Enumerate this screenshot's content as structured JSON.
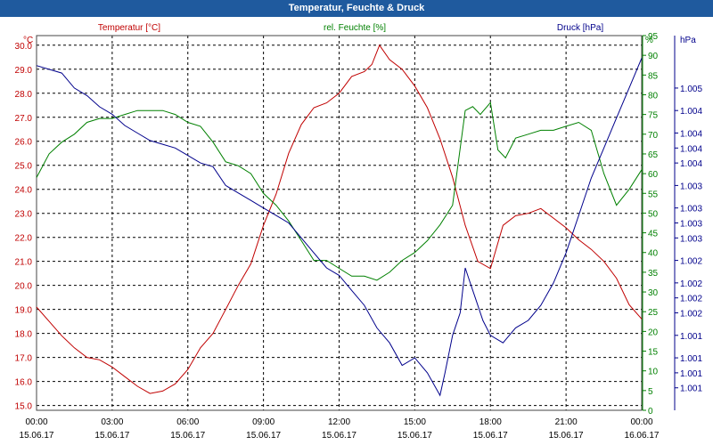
{
  "window": {
    "title": "Temperatur, Feuchte & Druck"
  },
  "chart_data": {
    "type": "line",
    "title": "Temperatur, Feuchte & Druck",
    "x_tick_times": [
      "00:00",
      "03:00",
      "06:00",
      "09:00",
      "12:00",
      "15:00",
      "18:00",
      "21:00",
      "00:00"
    ],
    "x_tick_dates": [
      "15.06.17",
      "15.06.17",
      "15.06.17",
      "15.06.17",
      "15.06.17",
      "15.06.17",
      "15.06.17",
      "15.06.17",
      "16.06.17"
    ],
    "x_hours": [
      0,
      3,
      6,
      9,
      12,
      15,
      18,
      21,
      24
    ],
    "xlim": [
      0,
      24
    ],
    "grid": true,
    "axes": {
      "temperature": {
        "unit_label": "°C",
        "ylim": [
          14.8,
          30.4
        ],
        "ticks": [
          "15.0",
          "16.0",
          "17.0",
          "18.0",
          "19.0",
          "20.0",
          "21.0",
          "22.0",
          "23.0",
          "24.0",
          "25.0",
          "26.0",
          "27.0",
          "28.0",
          "29.0",
          "30.0"
        ],
        "tick_values": [
          15,
          16,
          17,
          18,
          19,
          20,
          21,
          22,
          23,
          24,
          25,
          26,
          27,
          28,
          29,
          30
        ]
      },
      "humidity": {
        "unit_label": "%",
        "ylim": [
          0,
          95
        ],
        "ticks": [
          "0",
          "5",
          "10",
          "15",
          "20",
          "25",
          "30",
          "35",
          "40",
          "45",
          "50",
          "55",
          "60",
          "65",
          "70",
          "75",
          "80",
          "85",
          "90",
          "95"
        ],
        "tick_values": [
          0,
          5,
          10,
          15,
          20,
          25,
          30,
          35,
          40,
          45,
          50,
          55,
          60,
          65,
          70,
          75,
          80,
          85,
          90,
          95
        ]
      },
      "pressure": {
        "unit_label": "hPa",
        "ylim": [
          1000.5,
          1005.5
        ],
        "ticks": [
          "1.001",
          "1.001",
          "1.001",
          "1.001",
          "1.002",
          "1.002",
          "1.002",
          "1.002",
          "1.003",
          "1.003",
          "1.003",
          "1.003",
          "1.004",
          "1.004",
          "1.004",
          "1.004",
          "1.005"
        ],
        "tick_values": [
          1000.8,
          1001.0,
          1001.2,
          1001.5,
          1001.8,
          1002.0,
          1002.2,
          1002.5,
          1002.8,
          1003.0,
          1003.2,
          1003.5,
          1003.8,
          1004.0,
          1004.2,
          1004.5,
          1004.8
        ]
      }
    },
    "series": [
      {
        "name": "Temperatur [°C]",
        "axis": "temperature",
        "color": "#c00000",
        "x": [
          0,
          0.5,
          1,
          1.5,
          2,
          2.5,
          3,
          3.5,
          4,
          4.5,
          5,
          5.5,
          6,
          6.5,
          7,
          7.5,
          8,
          8.5,
          9,
          9.5,
          10,
          10.5,
          11,
          11.5,
          12,
          12.5,
          13,
          13.3,
          13.6,
          14,
          14.5,
          15,
          15.5,
          16,
          16.5,
          17,
          17.5,
          18,
          18.5,
          19,
          19.5,
          20,
          20.5,
          21,
          21.5,
          22,
          22.5,
          23,
          23.5,
          24
        ],
        "values": [
          19.1,
          18.5,
          17.9,
          17.4,
          17.0,
          16.9,
          16.6,
          16.2,
          15.8,
          15.5,
          15.6,
          15.9,
          16.5,
          17.4,
          18.0,
          19.0,
          20.0,
          20.9,
          22.5,
          23.8,
          25.5,
          26.7,
          27.4,
          27.6,
          28.0,
          28.7,
          28.9,
          29.2,
          30.0,
          29.4,
          29.0,
          28.3,
          27.4,
          26.1,
          24.5,
          22.5,
          21.0,
          20.7,
          22.5,
          22.9,
          23.0,
          23.2,
          22.8,
          22.4,
          21.9,
          21.5,
          21.0,
          20.3,
          19.2,
          18.6
        ]
      },
      {
        "name": "rel. Feuchte [%]",
        "axis": "humidity",
        "color": "#008000",
        "x": [
          0,
          0.5,
          1,
          1.5,
          2,
          2.5,
          3,
          3.5,
          4,
          4.5,
          5,
          5.5,
          6,
          6.5,
          7,
          7.5,
          8,
          8.5,
          9,
          9.5,
          10,
          10.5,
          11,
          11.5,
          12,
          12.5,
          13,
          13.5,
          14,
          14.5,
          15,
          15.5,
          16,
          16.5,
          17,
          17.3,
          17.6,
          18,
          18.3,
          18.6,
          19,
          19.5,
          20,
          20.5,
          21,
          21.5,
          22,
          22.5,
          23,
          23.5,
          24
        ],
        "values": [
          59,
          65,
          68,
          70,
          73,
          74,
          74,
          75,
          76,
          76,
          76,
          75,
          73,
          72,
          68,
          63,
          62,
          60,
          55,
          52,
          48,
          43,
          38,
          38,
          36,
          34,
          34,
          33,
          35,
          38,
          40,
          43,
          47,
          52,
          76,
          77,
          75,
          78,
          66,
          64,
          69,
          70,
          71,
          71,
          72,
          73,
          71,
          60,
          52,
          56,
          61
        ]
      },
      {
        "name": "Druck [hPa]",
        "axis": "pressure",
        "color": "#00008b",
        "x": [
          0,
          0.5,
          1,
          1.5,
          2,
          2.5,
          3,
          3.5,
          4,
          4.5,
          5,
          5.5,
          6,
          6.5,
          7,
          7.5,
          8,
          8.5,
          9,
          9.5,
          10,
          10.5,
          11,
          11.5,
          12,
          12.5,
          13,
          13.5,
          14,
          14.5,
          15,
          15.5,
          16,
          16.2,
          16.5,
          16.8,
          17,
          17.2,
          17.4,
          17.7,
          18,
          18.5,
          19,
          19.5,
          20,
          20.5,
          21,
          21.5,
          22,
          22.5,
          23,
          23.5,
          24
        ],
        "values": [
          1005.1,
          1005.05,
          1005.0,
          1004.8,
          1004.7,
          1004.55,
          1004.45,
          1004.3,
          1004.2,
          1004.1,
          1004.05,
          1004.0,
          1003.9,
          1003.8,
          1003.75,
          1003.5,
          1003.4,
          1003.3,
          1003.2,
          1003.1,
          1003.0,
          1002.8,
          1002.6,
          1002.4,
          1002.3,
          1002.1,
          1001.9,
          1001.6,
          1001.4,
          1001.1,
          1001.2,
          1001.0,
          1000.7,
          1001.0,
          1001.5,
          1001.8,
          1002.4,
          1002.2,
          1002.0,
          1001.7,
          1001.5,
          1001.4,
          1001.6,
          1001.7,
          1001.9,
          1002.2,
          1002.6,
          1003.1,
          1003.6,
          1004.0,
          1004.4,
          1004.8,
          1005.2
        ]
      }
    ]
  }
}
